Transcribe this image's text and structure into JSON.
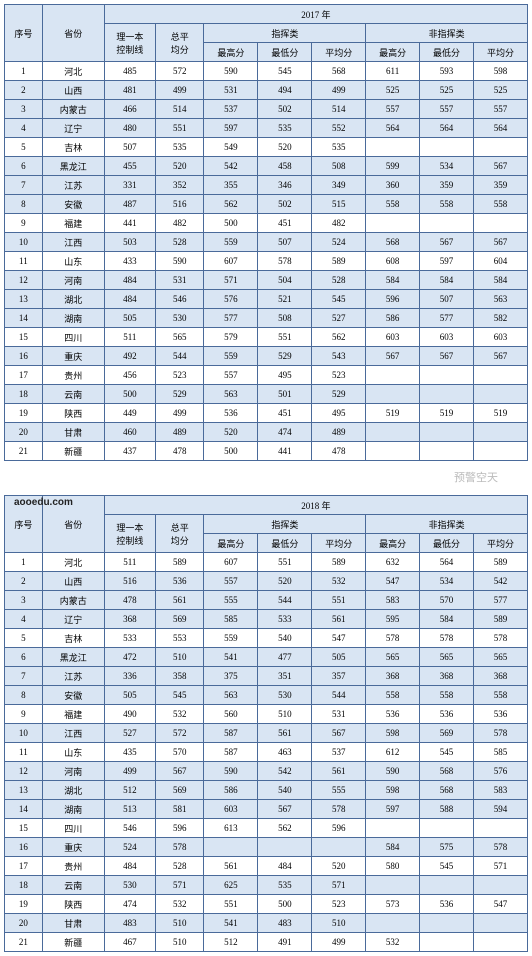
{
  "headers": {
    "idx": "序号",
    "prov": "省份",
    "ctrl": "理一本\n控制线",
    "totalavg": "总平\n均分",
    "cmd": "指挥类",
    "noncmd": "非指挥类",
    "max": "最高分",
    "min": "最低分",
    "avg": "平均分"
  },
  "years": {
    "y2017": "2017 年",
    "y2018": "2018 年"
  },
  "watermark": "预警空天",
  "url": "aooedu.com",
  "t2017": [
    {
      "n": "1",
      "p": "河北",
      "c": "485",
      "a": "572",
      "c1": "590",
      "c2": "545",
      "c3": "568",
      "n1": "611",
      "n2": "593",
      "n3": "598"
    },
    {
      "n": "2",
      "p": "山西",
      "c": "481",
      "a": "499",
      "c1": "531",
      "c2": "494",
      "c3": "499",
      "n1": "525",
      "n2": "525",
      "n3": "525"
    },
    {
      "n": "3",
      "p": "内蒙古",
      "c": "466",
      "a": "514",
      "c1": "537",
      "c2": "502",
      "c3": "514",
      "n1": "557",
      "n2": "557",
      "n3": "557"
    },
    {
      "n": "4",
      "p": "辽宁",
      "c": "480",
      "a": "551",
      "c1": "597",
      "c2": "535",
      "c3": "552",
      "n1": "564",
      "n2": "564",
      "n3": "564"
    },
    {
      "n": "5",
      "p": "吉林",
      "c": "507",
      "a": "535",
      "c1": "549",
      "c2": "520",
      "c3": "535",
      "n1": "",
      "n2": "",
      "n3": ""
    },
    {
      "n": "6",
      "p": "黑龙江",
      "c": "455",
      "a": "520",
      "c1": "542",
      "c2": "458",
      "c3": "508",
      "n1": "599",
      "n2": "534",
      "n3": "567"
    },
    {
      "n": "7",
      "p": "江苏",
      "c": "331",
      "a": "352",
      "c1": "355",
      "c2": "346",
      "c3": "349",
      "n1": "360",
      "n2": "359",
      "n3": "359"
    },
    {
      "n": "8",
      "p": "安徽",
      "c": "487",
      "a": "516",
      "c1": "562",
      "c2": "502",
      "c3": "515",
      "n1": "558",
      "n2": "558",
      "n3": "558"
    },
    {
      "n": "9",
      "p": "福建",
      "c": "441",
      "a": "482",
      "c1": "500",
      "c2": "451",
      "c3": "482",
      "n1": "",
      "n2": "",
      "n3": ""
    },
    {
      "n": "10",
      "p": "江西",
      "c": "503",
      "a": "528",
      "c1": "559",
      "c2": "507",
      "c3": "524",
      "n1": "568",
      "n2": "567",
      "n3": "567"
    },
    {
      "n": "11",
      "p": "山东",
      "c": "433",
      "a": "590",
      "c1": "607",
      "c2": "578",
      "c3": "589",
      "n1": "608",
      "n2": "597",
      "n3": "604"
    },
    {
      "n": "12",
      "p": "河南",
      "c": "484",
      "a": "531",
      "c1": "571",
      "c2": "504",
      "c3": "528",
      "n1": "584",
      "n2": "584",
      "n3": "584"
    },
    {
      "n": "13",
      "p": "湖北",
      "c": "484",
      "a": "546",
      "c1": "576",
      "c2": "521",
      "c3": "545",
      "n1": "596",
      "n2": "507",
      "n3": "563"
    },
    {
      "n": "14",
      "p": "湖南",
      "c": "505",
      "a": "530",
      "c1": "577",
      "c2": "508",
      "c3": "527",
      "n1": "586",
      "n2": "577",
      "n3": "582"
    },
    {
      "n": "15",
      "p": "四川",
      "c": "511",
      "a": "565",
      "c1": "579",
      "c2": "551",
      "c3": "562",
      "n1": "603",
      "n2": "603",
      "n3": "603"
    },
    {
      "n": "16",
      "p": "重庆",
      "c": "492",
      "a": "544",
      "c1": "559",
      "c2": "529",
      "c3": "543",
      "n1": "567",
      "n2": "567",
      "n3": "567"
    },
    {
      "n": "17",
      "p": "贵州",
      "c": "456",
      "a": "523",
      "c1": "557",
      "c2": "495",
      "c3": "523",
      "n1": "",
      "n2": "",
      "n3": ""
    },
    {
      "n": "18",
      "p": "云南",
      "c": "500",
      "a": "529",
      "c1": "563",
      "c2": "501",
      "c3": "529",
      "n1": "",
      "n2": "",
      "n3": ""
    },
    {
      "n": "19",
      "p": "陕西",
      "c": "449",
      "a": "499",
      "c1": "536",
      "c2": "451",
      "c3": "495",
      "n1": "519",
      "n2": "519",
      "n3": "519"
    },
    {
      "n": "20",
      "p": "甘肃",
      "c": "460",
      "a": "489",
      "c1": "520",
      "c2": "474",
      "c3": "489",
      "n1": "",
      "n2": "",
      "n3": ""
    },
    {
      "n": "21",
      "p": "新疆",
      "c": "437",
      "a": "478",
      "c1": "500",
      "c2": "441",
      "c3": "478",
      "n1": "",
      "n2": "",
      "n3": ""
    }
  ],
  "t2018": [
    {
      "n": "1",
      "p": "河北",
      "c": "511",
      "a": "589",
      "c1": "607",
      "c2": "551",
      "c3": "589",
      "n1": "632",
      "n2": "564",
      "n3": "589"
    },
    {
      "n": "2",
      "p": "山西",
      "c": "516",
      "a": "536",
      "c1": "557",
      "c2": "520",
      "c3": "532",
      "n1": "547",
      "n2": "534",
      "n3": "542"
    },
    {
      "n": "3",
      "p": "内蒙古",
      "c": "478",
      "a": "561",
      "c1": "555",
      "c2": "544",
      "c3": "551",
      "n1": "583",
      "n2": "570",
      "n3": "577"
    },
    {
      "n": "4",
      "p": "辽宁",
      "c": "368",
      "a": "569",
      "c1": "585",
      "c2": "533",
      "c3": "561",
      "n1": "595",
      "n2": "584",
      "n3": "589"
    },
    {
      "n": "5",
      "p": "吉林",
      "c": "533",
      "a": "553",
      "c1": "559",
      "c2": "540",
      "c3": "547",
      "n1": "578",
      "n2": "578",
      "n3": "578"
    },
    {
      "n": "6",
      "p": "黑龙江",
      "c": "472",
      "a": "510",
      "c1": "541",
      "c2": "477",
      "c3": "505",
      "n1": "565",
      "n2": "565",
      "n3": "565"
    },
    {
      "n": "7",
      "p": "江苏",
      "c": "336",
      "a": "358",
      "c1": "375",
      "c2": "351",
      "c3": "357",
      "n1": "368",
      "n2": "368",
      "n3": "368"
    },
    {
      "n": "8",
      "p": "安徽",
      "c": "505",
      "a": "545",
      "c1": "563",
      "c2": "530",
      "c3": "544",
      "n1": "558",
      "n2": "558",
      "n3": "558"
    },
    {
      "n": "9",
      "p": "福建",
      "c": "490",
      "a": "532",
      "c1": "560",
      "c2": "510",
      "c3": "531",
      "n1": "536",
      "n2": "536",
      "n3": "536"
    },
    {
      "n": "10",
      "p": "江西",
      "c": "527",
      "a": "572",
      "c1": "587",
      "c2": "561",
      "c3": "567",
      "n1": "598",
      "n2": "569",
      "n3": "578"
    },
    {
      "n": "11",
      "p": "山东",
      "c": "435",
      "a": "570",
      "c1": "587",
      "c2": "463",
      "c3": "537",
      "n1": "612",
      "n2": "545",
      "n3": "585"
    },
    {
      "n": "12",
      "p": "河南",
      "c": "499",
      "a": "567",
      "c1": "590",
      "c2": "542",
      "c3": "561",
      "n1": "590",
      "n2": "568",
      "n3": "576"
    },
    {
      "n": "13",
      "p": "湖北",
      "c": "512",
      "a": "569",
      "c1": "586",
      "c2": "540",
      "c3": "555",
      "n1": "598",
      "n2": "568",
      "n3": "583"
    },
    {
      "n": "14",
      "p": "湖南",
      "c": "513",
      "a": "581",
      "c1": "603",
      "c2": "567",
      "c3": "578",
      "n1": "597",
      "n2": "588",
      "n3": "594"
    },
    {
      "n": "15",
      "p": "四川",
      "c": "546",
      "a": "596",
      "c1": "613",
      "c2": "562",
      "c3": "596",
      "n1": "",
      "n2": "",
      "n3": ""
    },
    {
      "n": "16",
      "p": "重庆",
      "c": "524",
      "a": "578",
      "c1": "",
      "c2": "",
      "c3": "",
      "n1": "584",
      "n2": "575",
      "n3": "578"
    },
    {
      "n": "17",
      "p": "贵州",
      "c": "484",
      "a": "528",
      "c1": "561",
      "c2": "484",
      "c3": "520",
      "n1": "580",
      "n2": "545",
      "n3": "571"
    },
    {
      "n": "18",
      "p": "云南",
      "c": "530",
      "a": "571",
      "c1": "625",
      "c2": "535",
      "c3": "571",
      "n1": "",
      "n2": "",
      "n3": ""
    },
    {
      "n": "19",
      "p": "陕西",
      "c": "474",
      "a": "532",
      "c1": "551",
      "c2": "500",
      "c3": "523",
      "n1": "573",
      "n2": "536",
      "n3": "547"
    },
    {
      "n": "20",
      "p": "甘肃",
      "c": "483",
      "a": "510",
      "c1": "541",
      "c2": "483",
      "c3": "510",
      "n1": "",
      "n2": "",
      "n3": ""
    },
    {
      "n": "21",
      "p": "新疆",
      "c": "467",
      "a": "510",
      "c1": "512",
      "c2": "491",
      "c3": "499",
      "n1": "532",
      "n2": "",
      "n3": ""
    }
  ],
  "style": {
    "border_color": "#4a6a9a",
    "header_bg": "#d9e5f3",
    "shade_bg": "#d9e5f3",
    "font_size": 9
  }
}
